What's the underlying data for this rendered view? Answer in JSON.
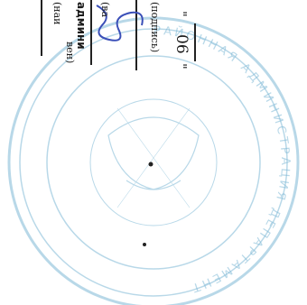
{
  "document": {
    "caption_org": "(наи",
    "admin_label": "админи",
    "caption_position": "(ва",
    "caption_signature": "(подпись)",
    "open_quote": "\"",
    "date_day": "06",
    "close_quote": "\"",
    "stray_name_fragment": "вен)"
  },
  "seal": {
    "ring_text": "РАЙОННАЯ АДМИНИСТРАЦИЯ ДЕПАРТАМЕНТ",
    "color": "#7fb9d6"
  },
  "colors": {
    "ink": "#1a1a1a",
    "signature": "#3a4fb8"
  }
}
